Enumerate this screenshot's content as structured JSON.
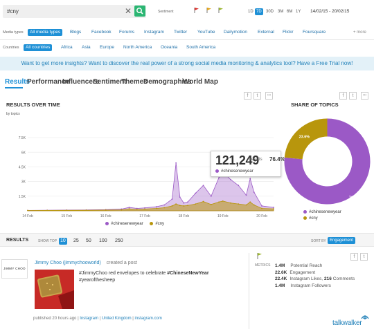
{
  "search": {
    "value": "#cny",
    "clear_glyph": "✕"
  },
  "sentiment": {
    "label": "Sentiment",
    "flag_colors": [
      "#d9302b",
      "#e0a21a",
      "#9ab52d"
    ]
  },
  "ranges": {
    "items": [
      "1D",
      "7D",
      "30D",
      "3M",
      "6M",
      "1Y"
    ],
    "active": "7D"
  },
  "date_range": "14/02/15 - 20/02/15",
  "media_types": {
    "label": "Media types",
    "items": [
      "All media types",
      "Blogs",
      "Facebook",
      "Forums",
      "Instagram",
      "Twitter",
      "YouTube",
      "Dailymotion",
      "External",
      "Flickr",
      "Foursquare"
    ],
    "more": "+ more"
  },
  "countries": {
    "label": "Countries",
    "items": [
      "All countries",
      "Africa",
      "Asia",
      "Europe",
      "North America",
      "Oceania",
      "South America"
    ]
  },
  "banner": "Want to get more insights? Want to discover the real power of a strong social media monitoring & analytics tool? Have a Free Trial now!",
  "tabs": [
    "Results",
    "Performance",
    "Influencers",
    "Sentiment",
    "Themes",
    "Demographics",
    "World Map"
  ],
  "results_over_time": {
    "title": "RESULTS OVER TIME",
    "subtitle": "by topics"
  },
  "share_of_topics": {
    "title": "SHARE OF TOPICS"
  },
  "share_buttons": {
    "facebook": "f",
    "twitter": "t",
    "more": "•••"
  },
  "tooltip": {
    "value": "121,249",
    "unit": "results",
    "percent": "76.4%",
    "series": "#chinesenewyear"
  },
  "chart_data": [
    {
      "type": "area",
      "title": "RESULTS OVER TIME",
      "subtitle": "by topics",
      "x_ticks": [
        "14 Feb",
        "15 Feb",
        "16 Feb",
        "17 Feb",
        "18 Feb",
        "19 Feb",
        "20 Feb"
      ],
      "y_ticks": [
        "1.5K",
        "3K",
        "4.5K",
        "6K",
        "7.5K"
      ],
      "ylim": [
        0,
        8000
      ],
      "series": [
        {
          "name": "#chinesenewyear",
          "color": "#9b59c6",
          "x": [
            14.0,
            14.5,
            15.0,
            15.5,
            16.0,
            16.4,
            16.6,
            16.8,
            17.0,
            17.3,
            17.5,
            17.7,
            17.8,
            17.9,
            18.0,
            18.1,
            18.3,
            18.5,
            18.7,
            18.9,
            19.0,
            19.2,
            19.4,
            19.6,
            19.7,
            19.8,
            20.0,
            20.3
          ],
          "values": [
            40,
            60,
            80,
            90,
            120,
            180,
            350,
            250,
            300,
            420,
            600,
            1200,
            4900,
            1400,
            800,
            900,
            1800,
            2600,
            1500,
            3400,
            4000,
            3200,
            2600,
            1600,
            3300,
            1900,
            500,
            350
          ]
        },
        {
          "name": "#cny",
          "color": "#b8960c",
          "x": [
            14.0,
            14.5,
            15.0,
            15.5,
            16.0,
            16.4,
            16.6,
            16.8,
            17.0,
            17.3,
            17.5,
            17.7,
            17.8,
            17.9,
            18.0,
            18.1,
            18.3,
            18.5,
            18.7,
            18.9,
            19.0,
            19.2,
            19.4,
            19.6,
            19.7,
            19.8,
            20.0,
            20.3
          ],
          "values": [
            30,
            40,
            50,
            60,
            80,
            100,
            200,
            150,
            180,
            250,
            320,
            500,
            700,
            550,
            500,
            550,
            700,
            950,
            650,
            900,
            1000,
            800,
            700,
            600,
            900,
            600,
            250,
            200
          ]
        }
      ]
    },
    {
      "type": "pie",
      "title": "SHARE OF TOPICS",
      "labels": [
        "#chinesenewyear",
        "#cny"
      ],
      "values": [
        76.4,
        23.6
      ],
      "colors": [
        "#9b59c6",
        "#b8960c"
      ],
      "data_labels": [
        "76.4%",
        "23.6%"
      ]
    }
  ],
  "results": {
    "label": "RESULTS",
    "show_top": "SHOW TOP",
    "sizes": [
      "10",
      "25",
      "50",
      "100",
      "250"
    ],
    "active": "10",
    "sort_by": "SORT BY",
    "sort_value": "Engagement"
  },
  "post": {
    "avatar_text": "JIMMY CHOO",
    "author": "Jimmy Choo (jimmychooworld)",
    "action": "created a post",
    "text_plain": "#JimmyChoo red envelopes to celebrate ",
    "text_bold": "#ChineseNewYear",
    "text_tail": "#yearofthesheep",
    "meta_published": "published 20 hours ago",
    "meta_sep": "|",
    "meta_source": "Instagram",
    "meta_country": "United Kingdom",
    "meta_domain": "instagram.com"
  },
  "metrics": {
    "label": "METRICS",
    "rows": [
      {
        "num": "1.4M",
        "label": "Potential Reach"
      },
      {
        "num": "22.6K",
        "label": "Engagement"
      },
      {
        "num": "22.4K",
        "label": "Instagram Likes",
        "sep": ",",
        "num2": "216",
        "label2": "Comments"
      },
      {
        "num": "1.4M",
        "label": "Instagram Followers"
      }
    ]
  },
  "brand": "talkwalker"
}
